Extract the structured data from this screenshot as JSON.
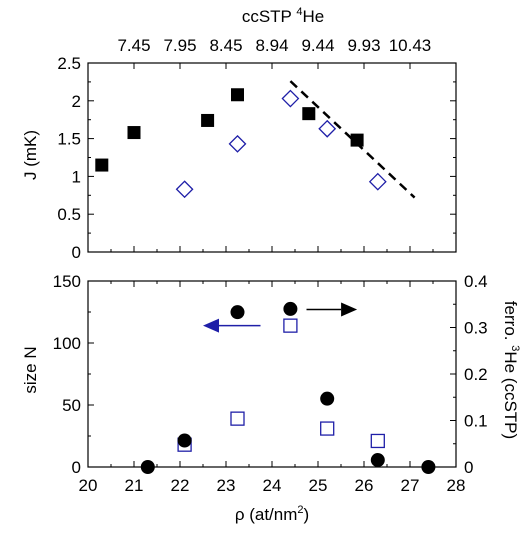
{
  "colors": {
    "black": "#000000",
    "blue": "#1f1fa8",
    "white": "#ffffff"
  },
  "chart_data": [
    {
      "type": "scatter",
      "panel": "top",
      "xlabel": "",
      "ylabel": "J (mK)",
      "xlim": [
        20,
        28
      ],
      "ylim": [
        0,
        2.5
      ],
      "xticks": [
        20,
        21,
        22,
        23,
        24,
        25,
        26,
        27,
        28
      ],
      "yticks": [
        "0",
        "0.5",
        "1",
        "1.5",
        "2",
        "2.5"
      ],
      "top_axis": {
        "label_main": "ccSTP ",
        "label_sup": "4",
        "label_tail": "He",
        "tick_labels": [
          "7.45",
          "7.95",
          "8.45",
          "8.94",
          "9.44",
          "9.93",
          "10.43"
        ],
        "tick_positions_x": [
          21,
          22,
          23,
          24,
          25,
          26,
          27
        ]
      },
      "series": [
        {
          "marker": "filled-square",
          "x": [
            20.3,
            21.0,
            22.6,
            23.25,
            24.8,
            25.85
          ],
          "y": [
            1.15,
            1.58,
            1.74,
            2.08,
            1.83,
            1.48
          ]
        },
        {
          "marker": "open-diamond",
          "x": [
            22.1,
            23.25,
            24.4,
            25.2,
            26.3
          ],
          "y": [
            0.83,
            1.43,
            2.03,
            1.63,
            0.93
          ]
        },
        {
          "marker": "dashed-line",
          "x": [
            24.4,
            27.1
          ],
          "y": [
            2.26,
            0.72
          ]
        }
      ]
    },
    {
      "type": "scatter",
      "panel": "bottom",
      "xlabel_main": "ρ  (at/nm",
      "xlabel_sup": "2",
      "xlabel_tail": ")",
      "ylabel": "size N",
      "xlim": [
        20,
        28
      ],
      "ylim": [
        0,
        150
      ],
      "xticks": [
        "20",
        "21",
        "22",
        "23",
        "24",
        "25",
        "26",
        "27",
        "28"
      ],
      "yticks": [
        "0",
        "50",
        "100",
        "150"
      ],
      "right_axis": {
        "label_main": "ferro. ",
        "label_sup": "3",
        "label_tail": "He (ccSTP)",
        "ylim": [
          0,
          0.4
        ],
        "yticks": [
          "0",
          "0.1",
          "0.2",
          "0.3",
          "0.4"
        ]
      },
      "series": [
        {
          "marker": "open-square",
          "axis": "left",
          "x": [
            22.1,
            23.25,
            24.4,
            25.2,
            26.3
          ],
          "y": [
            18,
            39,
            114,
            31,
            21
          ]
        },
        {
          "marker": "filled-circle",
          "axis": "right",
          "x": [
            21.3,
            22.1,
            23.25,
            24.4,
            25.2,
            26.3,
            27.4
          ],
          "y": [
            0.0,
            0.057,
            0.333,
            0.34,
            0.147,
            0.015,
            0.0
          ]
        }
      ],
      "annotations": [
        {
          "type": "arrow",
          "direction": "left",
          "color": "blue",
          "from": [
            23.75,
            114
          ],
          "to": [
            22.5,
            114
          ]
        },
        {
          "type": "arrow",
          "direction": "right",
          "color": "black",
          "from": [
            24.75,
            127
          ],
          "to": [
            25.85,
            127
          ]
        }
      ]
    }
  ]
}
